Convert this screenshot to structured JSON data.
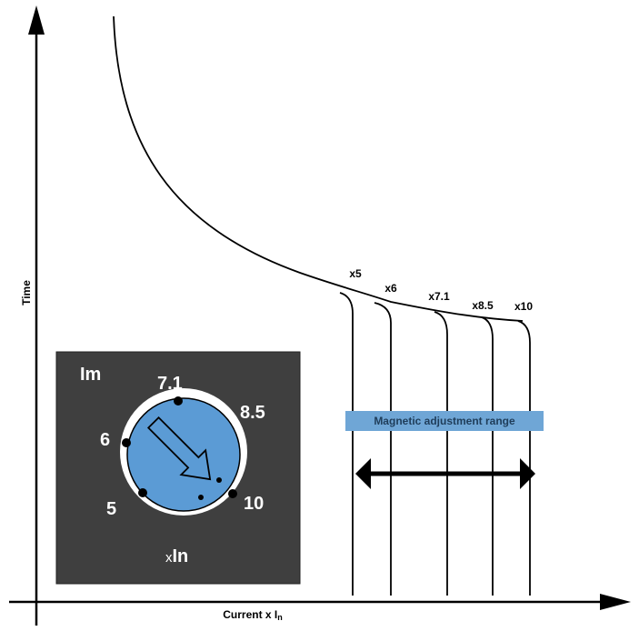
{
  "axes": {
    "y_label": "Time",
    "x_label_main": "Current x I",
    "x_label_sub": "n"
  },
  "curve_labels": [
    "x5",
    "x6",
    "x7.1",
    "x8.5",
    "x10"
  ],
  "range": {
    "label": "Magnetic adjustment range"
  },
  "dial": {
    "title": "Im",
    "unit_prefix": "x",
    "unit_main": "In",
    "settings": [
      "5",
      "6",
      "7.1",
      "8.5",
      "10"
    ]
  },
  "colors": {
    "panel": "#3f3f3f",
    "dial_fill": "#5b9bd5",
    "range_label_bg": "#6fa6d6",
    "line": "#000000"
  }
}
